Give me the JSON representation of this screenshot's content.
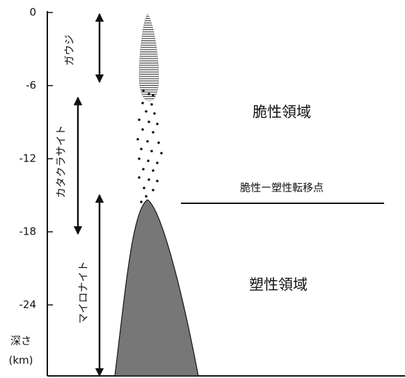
{
  "axis": {
    "ticks": [
      0,
      -6,
      -12,
      -18,
      -24
    ],
    "label": "深さ",
    "unit": "(km)"
  },
  "rock_types": [
    "ガウジ",
    "カタクラサイト",
    "マイロナイト"
  ],
  "zones": {
    "brittle": "脆性領域",
    "transition": "脆性ー塑性転移点",
    "plastic": "塑性領域"
  }
}
